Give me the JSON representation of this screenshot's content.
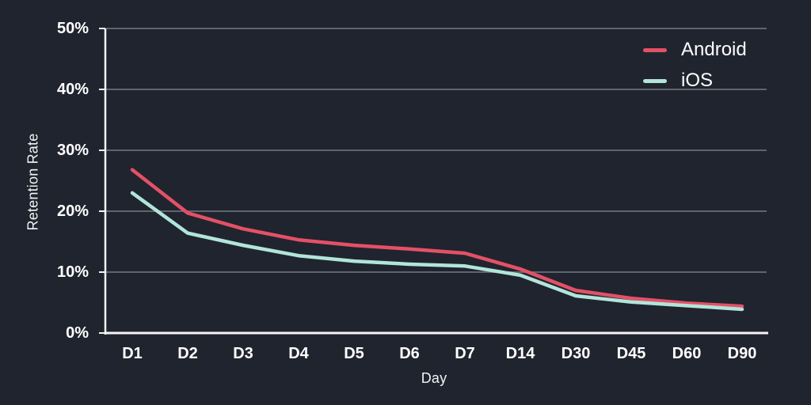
{
  "chart_data": {
    "type": "line",
    "categories": [
      "D1",
      "D2",
      "D3",
      "D4",
      "D5",
      "D6",
      "D7",
      "D14",
      "D30",
      "D45",
      "D60",
      "D90"
    ],
    "series": [
      {
        "name": "Android",
        "color": "#e35167",
        "values": [
          26.8,
          19.7,
          17.1,
          15.3,
          14.4,
          13.8,
          13.1,
          10.5,
          7.0,
          5.7,
          4.9,
          4.4
        ]
      },
      {
        "name": "iOS",
        "color": "#b2e5da",
        "values": [
          23.0,
          16.4,
          14.4,
          12.7,
          11.8,
          11.3,
          11.0,
          9.5,
          6.1,
          5.1,
          4.5,
          3.9
        ]
      }
    ],
    "title": "",
    "xlabel": "Day",
    "ylabel": "Retention Rate",
    "y_ticks": {
      "labels": [
        "0%",
        "10%",
        "20%",
        "30%",
        "40%",
        "50%"
      ],
      "values": [
        0,
        10,
        20,
        30,
        40,
        50
      ]
    },
    "ylim": [
      0,
      50
    ],
    "grid": "horizontal",
    "legend_position": "top-right"
  },
  "colors": {
    "background": "#20242e",
    "grid": "#5f646d",
    "axis": "#f5f5f5",
    "text": "#ffffff"
  }
}
